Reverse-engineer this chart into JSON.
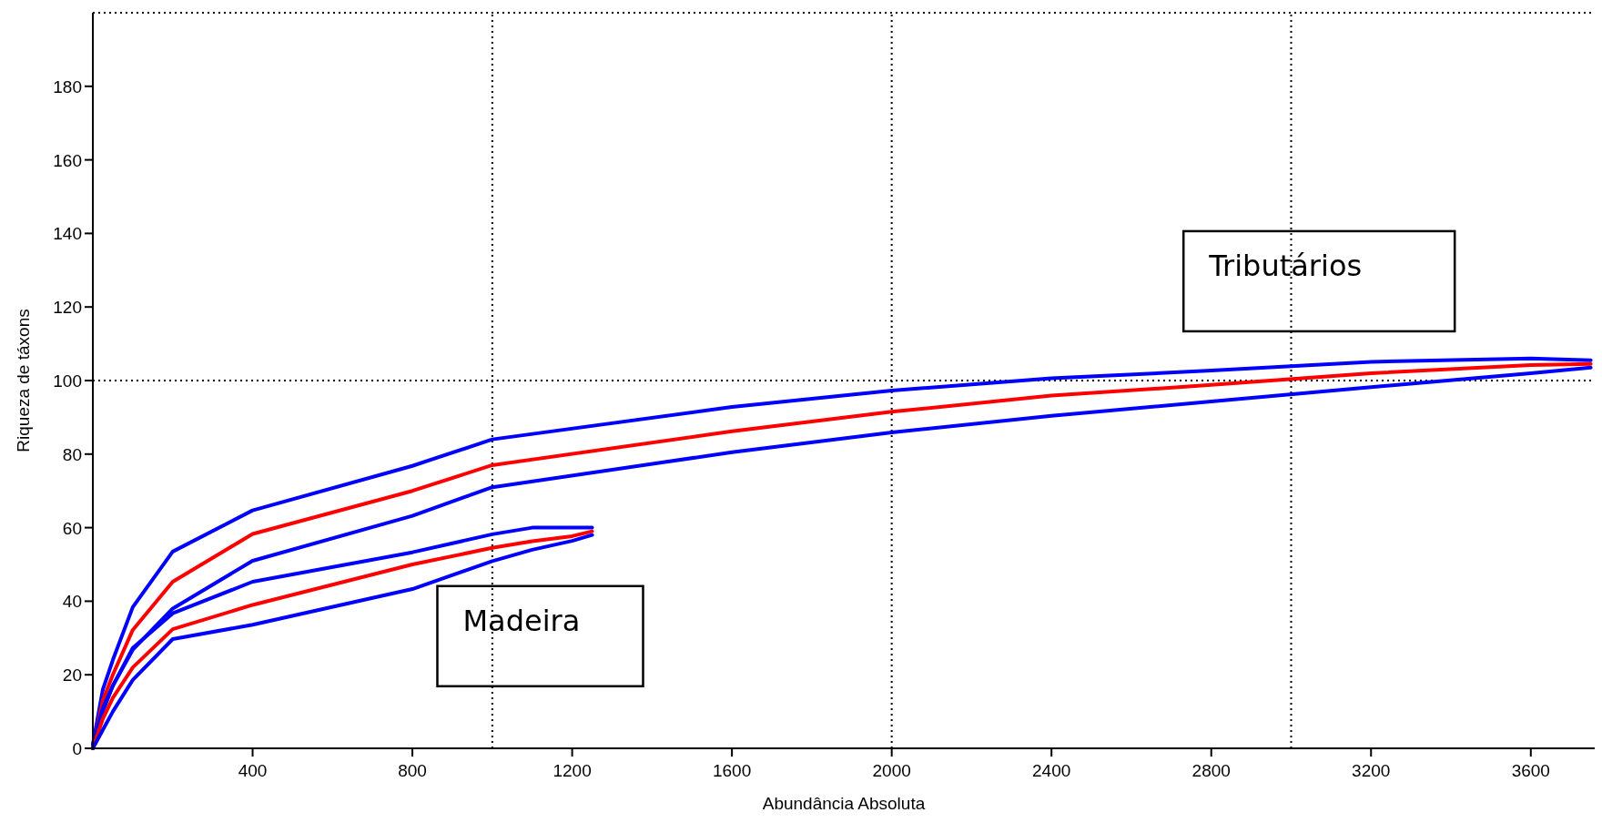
{
  "chart_data": {
    "type": "line",
    "xlabel": "Abundância Absoluta",
    "ylabel": "Riqueza de táxons",
    "xlim": [
      0,
      3760
    ],
    "ylim": [
      0,
      200
    ],
    "xticks": [
      400,
      800,
      1200,
      1600,
      2000,
      2400,
      2800,
      3200,
      3600
    ],
    "yticks": [
      0,
      20,
      40,
      60,
      80,
      100,
      120,
      140,
      160,
      180
    ],
    "grid": false,
    "marker": "none",
    "line_style": "solid",
    "series": [
      {
        "color": "#0000ff",
        "x": [
          0,
          25,
          50,
          100,
          200,
          400,
          800,
          1000,
          1600,
          2000,
          2400,
          2800,
          3200,
          3600,
          3750
        ],
        "values": [
          1,
          16,
          24,
          38.4,
          53.5,
          64.7,
          76.8,
          84,
          92.8,
          97.3,
          100.6,
          102.7,
          105.1,
          106,
          105.5
        ]
      },
      {
        "color": "#ff0000",
        "x": [
          0,
          25,
          50,
          100,
          200,
          400,
          800,
          1000,
          1600,
          2000,
          2400,
          2800,
          3200,
          3600,
          3750
        ],
        "values": [
          0,
          13,
          20,
          32.2,
          45.3,
          58.3,
          70,
          77,
          86.2,
          91.5,
          95.9,
          98.8,
          102,
          104.2,
          104.5
        ]
      },
      {
        "color": "#0000ff",
        "x": [
          0,
          25,
          50,
          100,
          200,
          400,
          800,
          1000,
          1600,
          2000,
          2400,
          2800,
          3200,
          3600,
          3750
        ],
        "values": [
          0,
          10,
          17,
          26.8,
          38,
          51,
          63.2,
          71,
          80.5,
          85.9,
          90.4,
          94.3,
          98.2,
          102,
          103.5
        ]
      },
      {
        "color": "#0000ff",
        "x": [
          0,
          25,
          50,
          100,
          200,
          400,
          800,
          1000,
          1100,
          1200,
          1250
        ],
        "values": [
          1,
          11,
          17,
          27.3,
          36.7,
          45.3,
          53.3,
          58.2,
          60,
          60,
          60
        ]
      },
      {
        "color": "#ff0000",
        "x": [
          0,
          25,
          50,
          100,
          200,
          400,
          800,
          1000,
          1100,
          1200,
          1250
        ],
        "values": [
          0,
          8,
          13.7,
          22,
          32.4,
          39,
          50,
          54.5,
          56.3,
          57.7,
          59
        ]
      },
      {
        "color": "#0000ff",
        "x": [
          0,
          25,
          50,
          100,
          200,
          400,
          800,
          1000,
          1100,
          1200,
          1250
        ],
        "values": [
          0,
          5,
          10,
          18.6,
          29.7,
          33.6,
          43.3,
          50.9,
          54,
          56.4,
          58
        ]
      }
    ],
    "ref_lines": [
      {
        "axis": "x",
        "value": 1000,
        "color": "#000000",
        "line_style": "dotted"
      },
      {
        "axis": "x",
        "value": 2000,
        "color": "#000000",
        "line_style": "dotted"
      },
      {
        "axis": "x",
        "value": 3000,
        "color": "#000000",
        "line_style": "dotted"
      },
      {
        "axis": "y",
        "value": 100,
        "color": "#000000",
        "line_style": "dotted"
      }
    ],
    "annotations": [
      "Madeira",
      "Tributários"
    ]
  }
}
